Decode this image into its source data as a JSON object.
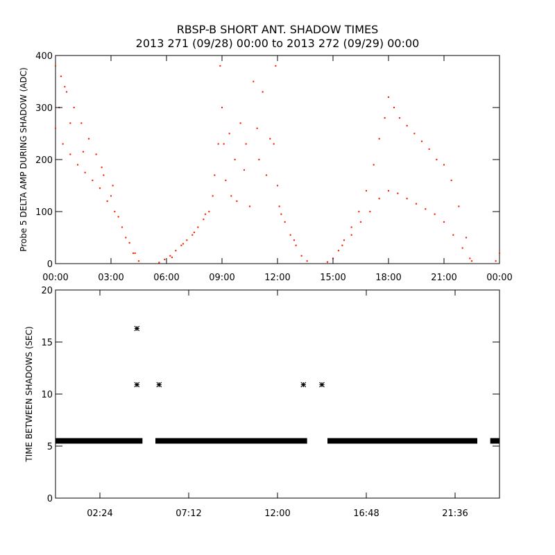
{
  "title_line1": "RBSP-B SHORT ANT. SHADOW TIMES",
  "title_line2": "2013 271 (09/28) 00:00 to 2013 272 (09/29) 00:00",
  "chart_data": [
    {
      "type": "scatter",
      "ylabel": "Probe 5 DELTA AMP DURING SHADOW (ADC)",
      "ylim": [
        0,
        400
      ],
      "xlim_hours": [
        0,
        24
      ],
      "x_tick_labels": [
        "00:00",
        "03:00",
        "06:00",
        "09:00",
        "12:00",
        "15:00",
        "18:00",
        "21:00",
        "00:00"
      ],
      "y_tick_labels": [
        "0",
        "100",
        "200",
        "300",
        "400"
      ],
      "color": "#ff2200",
      "points": [
        [
          0.0,
          380
        ],
        [
          0.3,
          360
        ],
        [
          0.6,
          330
        ],
        [
          1.0,
          300
        ],
        [
          1.4,
          270
        ],
        [
          1.8,
          240
        ],
        [
          2.2,
          210
        ],
        [
          2.6,
          170
        ],
        [
          3.0,
          130
        ],
        [
          3.4,
          90
        ],
        [
          3.8,
          50
        ],
        [
          4.2,
          20
        ],
        [
          4.5,
          5
        ],
        [
          0.0,
          260
        ],
        [
          0.4,
          230
        ],
        [
          0.8,
          210
        ],
        [
          1.2,
          190
        ],
        [
          1.6,
          175
        ],
        [
          2.0,
          160
        ],
        [
          2.4,
          145
        ],
        [
          2.8,
          120
        ],
        [
          3.2,
          100
        ],
        [
          3.6,
          70
        ],
        [
          4.0,
          40
        ],
        [
          4.3,
          20
        ],
        [
          0.2,
          300
        ],
        [
          0.5,
          340
        ],
        [
          0.8,
          270
        ],
        [
          1.5,
          215
        ],
        [
          2.5,
          185
        ],
        [
          3.1,
          150
        ],
        [
          5.6,
          2
        ],
        [
          5.9,
          8
        ],
        [
          6.2,
          15
        ],
        [
          6.5,
          25
        ],
        [
          6.8,
          35
        ],
        [
          7.1,
          45
        ],
        [
          7.4,
          55
        ],
        [
          7.7,
          70
        ],
        [
          8.0,
          85
        ],
        [
          8.3,
          100
        ],
        [
          8.5,
          130
        ],
        [
          6.3,
          12
        ],
        [
          6.9,
          38
        ],
        [
          7.5,
          60
        ],
        [
          8.1,
          95
        ],
        [
          8.6,
          170
        ],
        [
          8.8,
          230
        ],
        [
          8.9,
          380
        ],
        [
          9.0,
          300
        ],
        [
          9.1,
          230
        ],
        [
          9.2,
          160
        ],
        [
          9.4,
          250
        ],
        [
          9.5,
          130
        ],
        [
          9.7,
          200
        ],
        [
          9.8,
          120
        ],
        [
          10.0,
          270
        ],
        [
          10.2,
          180
        ],
        [
          10.3,
          230
        ],
        [
          10.5,
          110
        ],
        [
          10.7,
          350
        ],
        [
          10.9,
          260
        ],
        [
          11.0,
          200
        ],
        [
          11.2,
          330
        ],
        [
          11.4,
          170
        ],
        [
          11.6,
          240
        ],
        [
          11.8,
          230
        ],
        [
          11.9,
          380
        ],
        [
          12.0,
          150
        ],
        [
          12.1,
          110
        ],
        [
          12.4,
          80
        ],
        [
          12.7,
          55
        ],
        [
          13.0,
          35
        ],
        [
          13.3,
          15
        ],
        [
          13.6,
          5
        ],
        [
          12.2,
          95
        ],
        [
          12.9,
          45
        ],
        [
          14.7,
          3
        ],
        [
          15.0,
          10
        ],
        [
          15.3,
          25
        ],
        [
          15.6,
          45
        ],
        [
          16.0,
          70
        ],
        [
          16.4,
          100
        ],
        [
          16.8,
          140
        ],
        [
          17.2,
          190
        ],
        [
          17.5,
          240
        ],
        [
          17.8,
          280
        ],
        [
          18.0,
          320
        ],
        [
          18.3,
          300
        ],
        [
          18.6,
          280
        ],
        [
          19.0,
          265
        ],
        [
          19.4,
          250
        ],
        [
          19.8,
          235
        ],
        [
          20.2,
          220
        ],
        [
          20.6,
          200
        ],
        [
          21.0,
          190
        ],
        [
          21.4,
          160
        ],
        [
          21.8,
          110
        ],
        [
          22.2,
          50
        ],
        [
          22.5,
          5
        ],
        [
          15.5,
          35
        ],
        [
          16.0,
          55
        ],
        [
          16.5,
          80
        ],
        [
          17.0,
          100
        ],
        [
          17.5,
          125
        ],
        [
          18.0,
          140
        ],
        [
          18.5,
          135
        ],
        [
          19.0,
          125
        ],
        [
          19.5,
          115
        ],
        [
          20.0,
          105
        ],
        [
          20.5,
          95
        ],
        [
          21.0,
          80
        ],
        [
          21.5,
          55
        ],
        [
          22.0,
          30
        ],
        [
          22.4,
          10
        ],
        [
          23.8,
          5
        ],
        [
          24.0,
          20
        ]
      ]
    },
    {
      "type": "scatter",
      "ylabel": "TIME BETWEEN SHADOWS (SEC)",
      "ylim": [
        0,
        20
      ],
      "xlim_hours": [
        0,
        24
      ],
      "x_ticks_hours": [
        2.4,
        7.2,
        12.0,
        16.8,
        21.6
      ],
      "x_tick_labels": [
        "02:24",
        "07:12",
        "12:00",
        "16:48",
        "21:36"
      ],
      "y_tick_labels": [
        "0",
        "5",
        "10",
        "15",
        "20"
      ],
      "color": "#000000",
      "baseline_value": 5.5,
      "baseline_segments_hours": [
        [
          0.0,
          4.7
        ],
        [
          5.4,
          13.6
        ],
        [
          14.7,
          22.8
        ],
        [
          23.5,
          24.0
        ]
      ],
      "outliers": [
        [
          4.4,
          16.3
        ],
        [
          4.4,
          10.9
        ],
        [
          5.6,
          10.9
        ],
        [
          13.4,
          10.9
        ],
        [
          14.4,
          10.9
        ]
      ]
    }
  ]
}
